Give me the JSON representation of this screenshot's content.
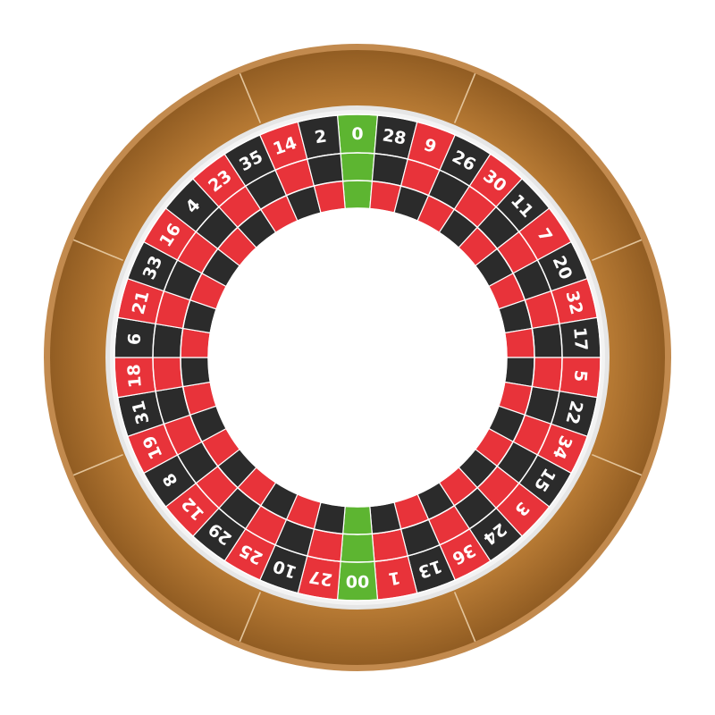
{
  "wheel": {
    "type": "american-roulette",
    "pockets": [
      {
        "label": "0",
        "color": "green"
      },
      {
        "label": "28",
        "color": "black"
      },
      {
        "label": "9",
        "color": "red"
      },
      {
        "label": "26",
        "color": "black"
      },
      {
        "label": "30",
        "color": "red"
      },
      {
        "label": "11",
        "color": "black"
      },
      {
        "label": "7",
        "color": "red"
      },
      {
        "label": "20",
        "color": "black"
      },
      {
        "label": "32",
        "color": "red"
      },
      {
        "label": "17",
        "color": "black"
      },
      {
        "label": "5",
        "color": "red"
      },
      {
        "label": "22",
        "color": "black"
      },
      {
        "label": "34",
        "color": "red"
      },
      {
        "label": "15",
        "color": "black"
      },
      {
        "label": "3",
        "color": "red"
      },
      {
        "label": "24",
        "color": "black"
      },
      {
        "label": "36",
        "color": "red"
      },
      {
        "label": "13",
        "color": "black"
      },
      {
        "label": "1",
        "color": "red"
      },
      {
        "label": "00",
        "color": "green"
      },
      {
        "label": "27",
        "color": "red"
      },
      {
        "label": "10",
        "color": "black"
      },
      {
        "label": "25",
        "color": "red"
      },
      {
        "label": "29",
        "color": "black"
      },
      {
        "label": "12",
        "color": "red"
      },
      {
        "label": "8",
        "color": "black"
      },
      {
        "label": "19",
        "color": "red"
      },
      {
        "label": "31",
        "color": "black"
      },
      {
        "label": "18",
        "color": "red"
      },
      {
        "label": "6",
        "color": "black"
      },
      {
        "label": "21",
        "color": "red"
      },
      {
        "label": "33",
        "color": "black"
      },
      {
        "label": "16",
        "color": "red"
      },
      {
        "label": "4",
        "color": "black"
      },
      {
        "label": "23",
        "color": "red"
      },
      {
        "label": "35",
        "color": "black"
      },
      {
        "label": "14",
        "color": "red"
      },
      {
        "label": "2",
        "color": "black"
      }
    ],
    "colors": {
      "red": "#e8333a",
      "black": "#2b2b2b",
      "green": "#5db531",
      "wood_light": "#c9883c",
      "wood_dark": "#8e5a21",
      "wood_edge": "#c28a4e",
      "track": "#f3f3f3",
      "center": "#ffffff"
    },
    "rim_divider_count": 8
  }
}
